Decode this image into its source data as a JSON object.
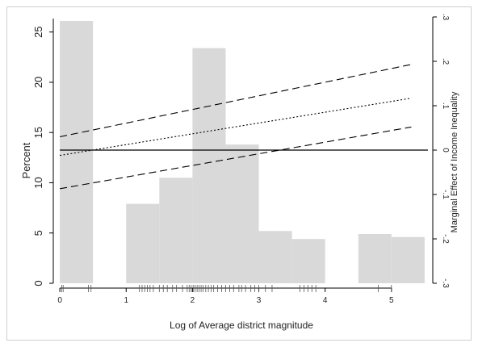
{
  "chart_data": {
    "type": "bar",
    "xlabel": "Log of Average district magnitude",
    "ylabel": "Percent",
    "y2label": "Marginal Effect of Income Inequality",
    "xlim": [
      -0.05,
      5.55
    ],
    "ylim": [
      0,
      26.5
    ],
    "y2lim": [
      -0.3,
      0.3
    ],
    "x_ticks": [
      0,
      1,
      2,
      3,
      4,
      5
    ],
    "y_ticks": [
      0,
      5,
      10,
      15,
      20,
      25
    ],
    "y2_ticks": [
      -0.3,
      -0.2,
      -0.1,
      0,
      0.1,
      0.2,
      0.3
    ],
    "y2_tick_labels": [
      "-.3",
      "-.2",
      "-.1",
      "0",
      ".1",
      ".2",
      ".3"
    ],
    "bar_color": "#d9d9d9",
    "histogram": [
      {
        "x0": 0.0,
        "x1": 0.5,
        "percent": 26.1
      },
      {
        "x0": 1.0,
        "x1": 1.5,
        "percent": 7.9
      },
      {
        "x0": 1.5,
        "x1": 2.0,
        "percent": 10.5
      },
      {
        "x0": 2.0,
        "x1": 2.5,
        "percent": 23.4
      },
      {
        "x0": 2.5,
        "x1": 3.0,
        "percent": 13.8
      },
      {
        "x0": 3.0,
        "x1": 3.5,
        "percent": 5.2
      },
      {
        "x0": 3.5,
        "x1": 4.0,
        "percent": 4.4
      },
      {
        "x0": 4.5,
        "x1": 5.0,
        "percent": 4.9
      },
      {
        "x0": 5.0,
        "x1": 5.5,
        "percent": 4.6
      }
    ],
    "reference_line": {
      "axis": "y2",
      "value": 0
    },
    "series": [
      {
        "style": "dotted",
        "axis": "y2",
        "x": [
          0,
          5.3
        ],
        "values": [
          -0.012,
          0.117
        ]
      },
      {
        "style": "dashed",
        "axis": "y2",
        "x": [
          0,
          5.3
        ],
        "values": [
          0.03,
          0.193
        ]
      },
      {
        "style": "dashed",
        "axis": "y2",
        "x": [
          0,
          5.3
        ],
        "values": [
          -0.087,
          0.052
        ]
      }
    ],
    "rug": [
      0.03,
      0.05,
      0.43,
      0.47,
      1.2,
      1.24,
      1.28,
      1.32,
      1.36,
      1.41,
      1.5,
      1.56,
      1.62,
      1.7,
      1.76,
      1.85,
      1.92,
      1.95,
      1.98,
      2.01,
      2.04,
      2.07,
      2.1,
      2.13,
      2.16,
      2.2,
      2.24,
      2.28,
      2.32,
      2.38,
      2.44,
      2.5,
      2.56,
      2.62,
      2.7,
      2.74,
      2.8,
      2.88,
      2.94,
      3.0,
      3.1,
      3.2,
      3.62,
      3.68,
      3.74,
      3.8,
      3.86,
      4.8,
      5.0
    ]
  }
}
